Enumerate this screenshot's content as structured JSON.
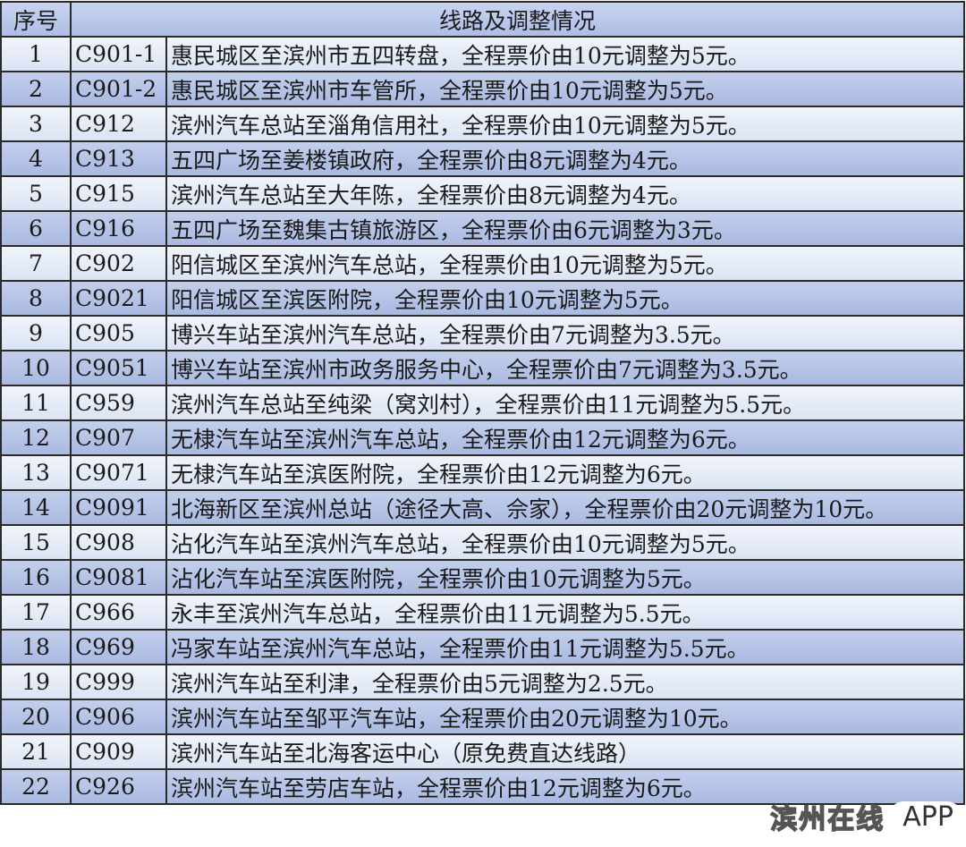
{
  "header": {
    "index": "序号",
    "route": "线路及调整情况"
  },
  "rows": [
    {
      "no": "1",
      "code": "C901-1",
      "desc": "惠民城区至滨州市五四转盘，全程票价由10元调整为5元。"
    },
    {
      "no": "2",
      "code": "C901-2",
      "desc": "惠民城区至滨州市车管所，全程票价由10元调整为5元。"
    },
    {
      "no": "3",
      "code": "C912",
      "desc": "滨州汽车总站至淄角信用社，全程票价由10元调整为5元。"
    },
    {
      "no": "4",
      "code": "C913",
      "desc": "五四广场至姜楼镇政府，全程票价由8元调整为4元。"
    },
    {
      "no": "5",
      "code": "C915",
      "desc": "滨州汽车总站至大年陈，全程票价由8元调整为4元。"
    },
    {
      "no": "6",
      "code": "C916",
      "desc": "五四广场至魏集古镇旅游区，全程票价由6元调整为3元。"
    },
    {
      "no": "7",
      "code": "C902",
      "desc": "阳信城区至滨州汽车总站，全程票价由10元调整为5元。"
    },
    {
      "no": "8",
      "code": "C9021",
      "desc": "阳信城区至滨医附院，全程票价由10元调整为5元。"
    },
    {
      "no": "9",
      "code": "C905",
      "desc": "博兴车站至滨州汽车总站，全程票价由7元调整为3.5元。"
    },
    {
      "no": "10",
      "code": "C9051",
      "desc": "博兴车站至滨州市政务服务中心，全程票价由7元调整为3.5元。"
    },
    {
      "no": "11",
      "code": "C959",
      "desc": "滨州汽车总站至纯梁（窝刘村），全程票价由11元调整为5.5元。"
    },
    {
      "no": "12",
      "code": "C907",
      "desc": "无棣汽车站至滨州汽车总站，全程票价由12元调整为6元。"
    },
    {
      "no": "13",
      "code": "C9071",
      "desc": "无棣汽车站至滨医附院，全程票价由12元调整为6元。"
    },
    {
      "no": "14",
      "code": "C9091",
      "desc": "北海新区至滨州总站（途径大高、佘家），全程票价由20元调整为10元。"
    },
    {
      "no": "15",
      "code": "C908",
      "desc": "沾化汽车站至滨州汽车总站，全程票价由10元调整为5元。"
    },
    {
      "no": "16",
      "code": "C9081",
      "desc": "沾化汽车站至滨医附院，全程票价由10元调整为5元。"
    },
    {
      "no": "17",
      "code": "C966",
      "desc": "永丰至滨州汽车总站，全程票价由11元调整为5.5元。"
    },
    {
      "no": "18",
      "code": "C969",
      "desc": "冯家车站至滨州汽车总站，全程票价由11元调整为5.5元。"
    },
    {
      "no": "19",
      "code": "C999",
      "desc": "滨州汽车站至利津，全程票价由5元调整为2.5元。"
    },
    {
      "no": "20",
      "code": "C906",
      "desc": "滨州汽车站至邹平汽车站，全程票价由20元调整为10元。"
    },
    {
      "no": "21",
      "code": "C909",
      "desc": "滨州汽车站至北海客运中心（原免费直达线路）"
    },
    {
      "no": "22",
      "code": "C926",
      "desc": "滨州汽车站至劳店车站，全程票价由12元调整为6元。"
    }
  ],
  "watermark": {
    "cn": "滨州在线",
    "app": "APP"
  }
}
